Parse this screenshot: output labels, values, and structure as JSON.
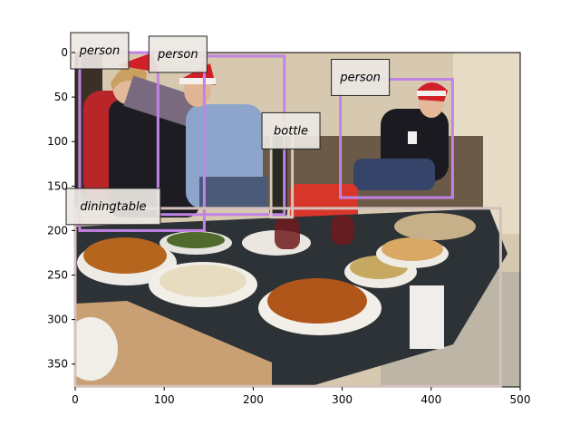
{
  "image": {
    "scene": "Christmas dinner party: people in santa hats on a couch behind a glass table full of dishes",
    "colors": {
      "wall": "#d8cbb2",
      "floor": "#b8b0a2",
      "table_glass": "#2b2f33",
      "tray": "#c9a074",
      "plate": "#f2f0ea",
      "fried_food": "#b5651d",
      "bowl_red": "#d8362a",
      "wine_bottle": "#2a2a1e",
      "sweater_red": "#c0282a",
      "shirt_blue": "#8aa2c8",
      "jacket_black": "#1a1a1e",
      "hat_red": "#d11f28",
      "skin": "#e2b89a"
    }
  },
  "x_axis": {
    "ticks": [
      "0",
      "100",
      "200",
      "300",
      "400",
      "500"
    ]
  },
  "y_axis": {
    "ticks": [
      "0",
      "50",
      "100",
      "150",
      "200",
      "250",
      "300",
      "350"
    ]
  },
  "detections": [
    {
      "label": "person",
      "color": "#c283e6",
      "bbox_data": [
        5,
        0,
        145,
        200
      ]
    },
    {
      "label": "person",
      "color": "#c283e6",
      "bbox_data": [
        93,
        4,
        235,
        182
      ]
    },
    {
      "label": "person",
      "color": "#c283e6",
      "bbox_data": [
        298,
        30,
        424,
        163
      ]
    },
    {
      "label": "bottle",
      "color": "#d6c8c0",
      "bbox_data": [
        220,
        90,
        244,
        185
      ]
    },
    {
      "label": "diningtable",
      "color": "#d4c0bc",
      "bbox_data": [
        0,
        175,
        478,
        375
      ]
    }
  ]
}
